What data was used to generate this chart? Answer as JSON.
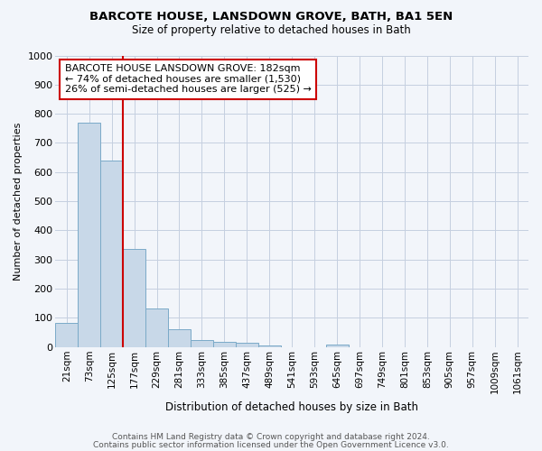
{
  "title1": "BARCOTE HOUSE, LANSDOWN GROVE, BATH, BA1 5EN",
  "title2": "Size of property relative to detached houses in Bath",
  "xlabel": "Distribution of detached houses by size in Bath",
  "ylabel": "Number of detached properties",
  "categories": [
    "21sqm",
    "73sqm",
    "125sqm",
    "177sqm",
    "229sqm",
    "281sqm",
    "333sqm",
    "385sqm",
    "437sqm",
    "489sqm",
    "541sqm",
    "593sqm",
    "645sqm",
    "697sqm",
    "749sqm",
    "801sqm",
    "853sqm",
    "905sqm",
    "957sqm",
    "1009sqm",
    "1061sqm"
  ],
  "values": [
    83,
    770,
    640,
    335,
    133,
    60,
    25,
    18,
    14,
    7,
    0,
    0,
    10,
    0,
    0,
    0,
    0,
    0,
    0,
    0,
    0
  ],
  "bar_color": "#c8d8e8",
  "bar_edge_color": "#7aaac8",
  "vline_x": 2.5,
  "vline_color": "#cc0000",
  "annotation_box_text": "BARCOTE HOUSE LANSDOWN GROVE: 182sqm\n← 74% of detached houses are smaller (1,530)\n26% of semi-detached houses are larger (525) →",
  "annotation_box_color": "#cc0000",
  "ylim": [
    0,
    1000
  ],
  "yticks": [
    0,
    100,
    200,
    300,
    400,
    500,
    600,
    700,
    800,
    900,
    1000
  ],
  "footer1": "Contains HM Land Registry data © Crown copyright and database right 2024.",
  "footer2": "Contains public sector information licensed under the Open Government Licence v3.0.",
  "bg_color": "#f2f5fa",
  "plot_bg_color": "#f2f5fa",
  "grid_color": "#c5cfe0"
}
